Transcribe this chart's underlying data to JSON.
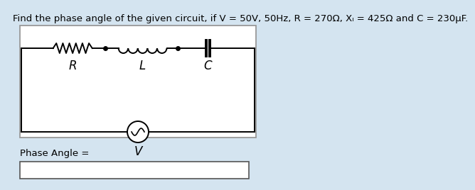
{
  "title": "Find the phase angle of the given circuit, if V = 50V, 50Hz, R = 270Ω, Xₗ = 425Ω and C = 230µF.",
  "background_color": "#d4e4f0",
  "circuit_box_color": "#ffffff",
  "circuit_box_edge": "#999999",
  "label_R": "R",
  "label_L": "L",
  "label_C": "C",
  "label_V": "V",
  "phase_angle_label": "Phase Angle =",
  "answer_box_color": "#ffffff",
  "answer_box_edge": "#555555",
  "title_fontsize": 9.5,
  "component_label_fontsize": 12
}
